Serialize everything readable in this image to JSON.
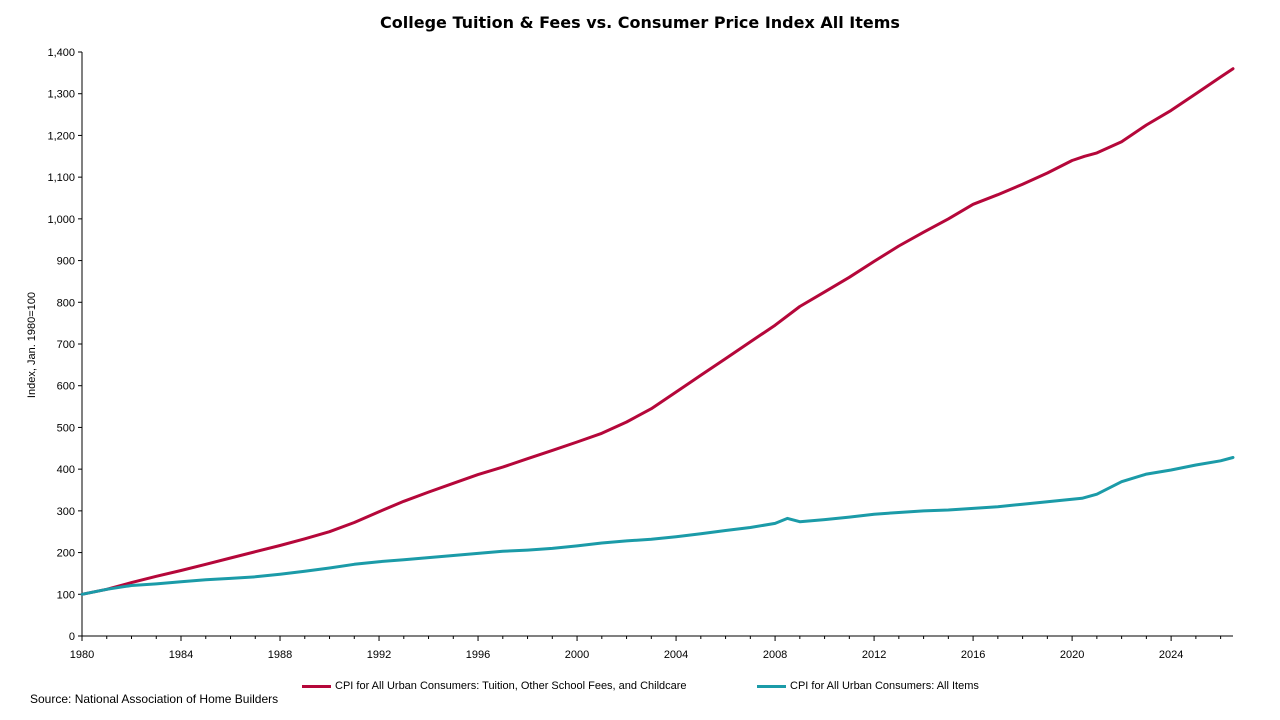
{
  "chart_data": {
    "type": "line",
    "title": "College Tuition & Fees vs. Consumer Price Index All Items",
    "ylabel": "Index, Jan. 1980=100",
    "xlabel": "",
    "xlim": [
      1980,
      2026.5
    ],
    "ylim": [
      0,
      1400
    ],
    "x_ticks": [
      "1980",
      "1984",
      "1988",
      "1992",
      "1996",
      "2000",
      "2004",
      "2008",
      "2012",
      "2016",
      "2020",
      "2024"
    ],
    "y_ticks": [
      "0",
      "100",
      "200",
      "300",
      "400",
      "500",
      "600",
      "700",
      "800",
      "900",
      "1,000",
      "1,100",
      "1,200",
      "1,300",
      "1,400"
    ],
    "grid": false,
    "legend_position": "bottom",
    "series": [
      {
        "name": "CPI for All Urban Consumers: Tuition, Other School Fees, and Childcare",
        "color": "#B5073A",
        "x": [
          1980,
          1981,
          1982,
          1983,
          1984,
          1985,
          1986,
          1987,
          1988,
          1989,
          1990,
          1991,
          1992,
          1993,
          1994,
          1995,
          1996,
          1997,
          1998,
          1999,
          2000,
          2001,
          2002,
          2003,
          2004,
          2005,
          2006,
          2007,
          2008,
          2009,
          2010,
          2011,
          2012,
          2013,
          2014,
          2015,
          2016,
          2017,
          2018,
          2019,
          2020,
          2020.5,
          2021,
          2022,
          2023,
          2024,
          2025,
          2026,
          2026.5
        ],
        "y": [
          100,
          112,
          128,
          143,
          157,
          172,
          187,
          202,
          217,
          233,
          250,
          272,
          298,
          323,
          345,
          366,
          387,
          405,
          425,
          445,
          465,
          486,
          513,
          545,
          585,
          625,
          665,
          705,
          745,
          790,
          825,
          860,
          898,
          935,
          968,
          1000,
          1035,
          1058,
          1083,
          1110,
          1140,
          1150,
          1158,
          1185,
          1225,
          1260,
          1300,
          1340,
          1360
        ]
      },
      {
        "name": "CPI for All Urban Consumers: All Items",
        "color": "#1B9BA8",
        "x": [
          1980,
          1981,
          1982,
          1983,
          1984,
          1985,
          1986,
          1987,
          1988,
          1989,
          1990,
          1991,
          1992,
          1993,
          1994,
          1995,
          1996,
          1997,
          1998,
          1999,
          2000,
          2001,
          2002,
          2003,
          2004,
          2005,
          2006,
          2007,
          2008,
          2008.5,
          2009,
          2010,
          2011,
          2012,
          2013,
          2014,
          2015,
          2016,
          2017,
          2018,
          2019,
          2020,
          2020.4,
          2021,
          2022,
          2023,
          2024,
          2025,
          2026,
          2026.5
        ],
        "y": [
          100,
          112,
          121,
          125,
          130,
          135,
          138,
          142,
          148,
          155,
          163,
          172,
          178,
          183,
          188,
          193,
          198,
          203,
          206,
          210,
          216,
          223,
          228,
          232,
          238,
          245,
          253,
          260,
          270,
          282,
          274,
          279,
          285,
          292,
          296,
          300,
          302,
          306,
          310,
          316,
          322,
          328,
          330,
          340,
          370,
          388,
          398,
          410,
          420,
          428
        ]
      }
    ]
  },
  "source_note": "Source: National Association of Home Builders"
}
